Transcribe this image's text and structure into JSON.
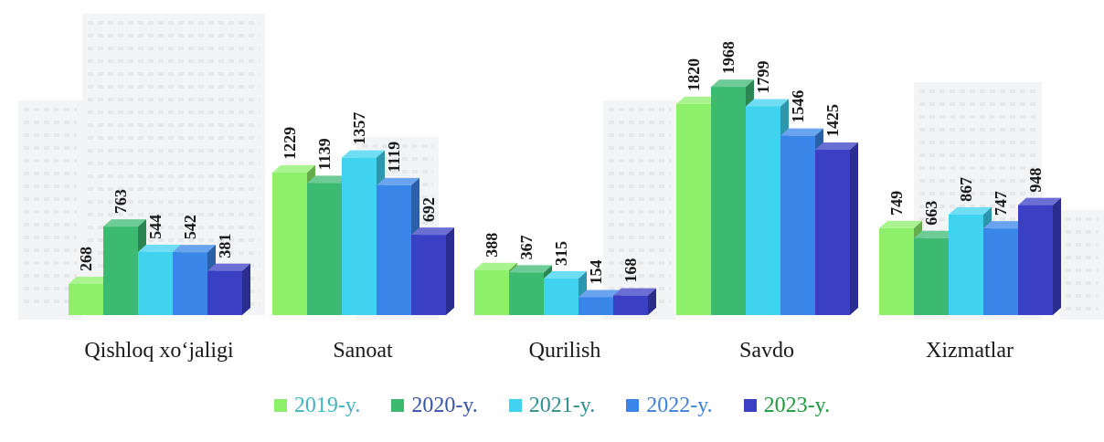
{
  "chart_data": {
    "type": "bar",
    "title": "",
    "xlabel": "",
    "ylabel": "",
    "ylim": [
      0,
      2000
    ],
    "grid": false,
    "legend_position": "bottom",
    "categories": [
      "Qishloq xo‘jaligi",
      "Sanoat",
      "Qurilish",
      "Savdo",
      "Xizmatlar"
    ],
    "series": [
      {
        "name": "2019-y.",
        "color": "#8cf06a",
        "legend_text_color": "#3fb5bf",
        "values": [
          268,
          1229,
          388,
          1820,
          749
        ]
      },
      {
        "name": "2020-y.",
        "color": "#3cba72",
        "legend_text_color": "#3a52a8",
        "values": [
          763,
          1139,
          367,
          1968,
          663
        ]
      },
      {
        "name": "2021-y.",
        "color": "#3fd3f0",
        "legend_text_color": "#2f8f8f",
        "values": [
          544,
          1357,
          315,
          1799,
          867
        ]
      },
      {
        "name": "2022-y.",
        "color": "#3a86e8",
        "legend_text_color": "#3f7fd8",
        "values": [
          542,
          1119,
          154,
          1546,
          747
        ]
      },
      {
        "name": "2023-y.",
        "color": "#3a3fc4",
        "legend_text_color": "#1f9a3e",
        "values": [
          381,
          692,
          168,
          1425,
          948
        ]
      }
    ]
  }
}
